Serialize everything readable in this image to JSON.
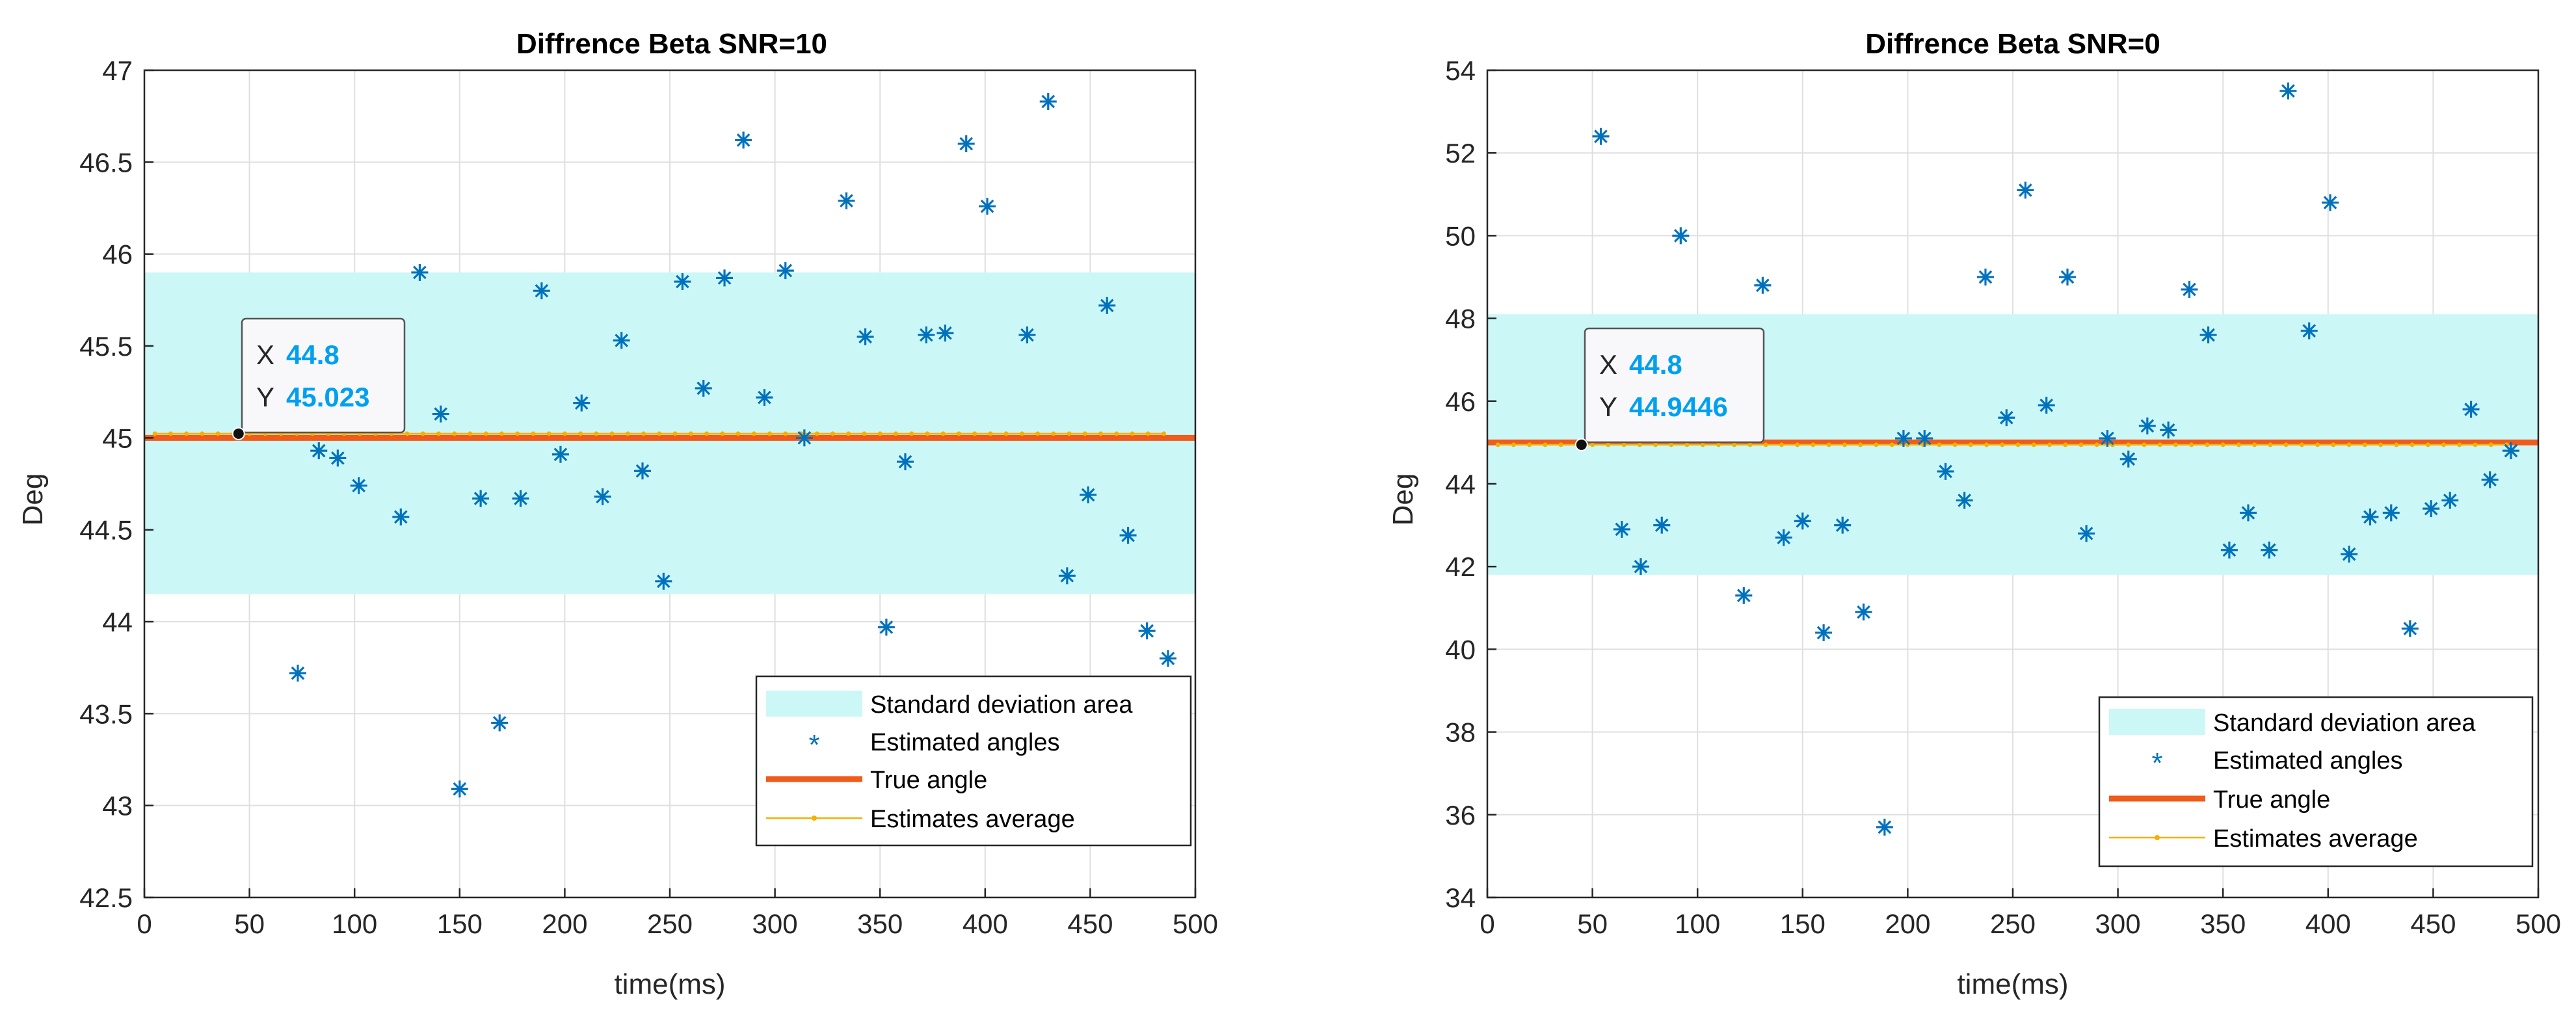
{
  "chart_data": [
    {
      "type": "scatter",
      "title": "Diffrence Beta SNR=10",
      "xlabel": "time(ms)",
      "ylabel": "Deg",
      "xlim": [
        0,
        500
      ],
      "ylim": [
        42.5,
        47
      ],
      "xticks": [
        0,
        50,
        100,
        150,
        200,
        250,
        300,
        350,
        400,
        450,
        500
      ],
      "yticks": [
        42.5,
        43,
        43.5,
        44,
        44.5,
        45,
        45.5,
        46,
        46.5,
        47
      ],
      "xtick_labels": [
        "0",
        "50",
        "100",
        "150",
        "200",
        "250",
        "300",
        "350",
        "400",
        "450",
        "500"
      ],
      "ytick_labels": [
        "42.5",
        "43",
        "43.5",
        "44",
        "44.5",
        "45",
        "45.5",
        "46",
        "46.5",
        "47"
      ],
      "grid": true,
      "legend_position": "bottom-right",
      "colors": {
        "band": "#ccf7f7",
        "estimates": "#0072bd",
        "true_angle": "#f05a1a",
        "average": "#f5b000"
      },
      "series": [
        {
          "name": "Standard deviation area",
          "kind": "band",
          "range": [
            44.15,
            45.9
          ]
        },
        {
          "name": "Estimated angles",
          "kind": "scatter",
          "points": [
            [
              73,
              43.72
            ],
            [
              83,
              44.93
            ],
            [
              92,
              44.89
            ],
            [
              102,
              44.74
            ],
            [
              122,
              44.57
            ],
            [
              131,
              45.9
            ],
            [
              141,
              45.13
            ],
            [
              150,
              43.09
            ],
            [
              160,
              44.67
            ],
            [
              169,
              43.45
            ],
            [
              179,
              44.67
            ],
            [
              189,
              45.8
            ],
            [
              198,
              44.91
            ],
            [
              208,
              45.19
            ],
            [
              218,
              44.68
            ],
            [
              227,
              45.53
            ],
            [
              237,
              44.82
            ],
            [
              247,
              44.22
            ],
            [
              256,
              45.85
            ],
            [
              266,
              45.27
            ],
            [
              276,
              45.87
            ],
            [
              285,
              46.62
            ],
            [
              295,
              45.22
            ],
            [
              305,
              45.91
            ],
            [
              314,
              45.0
            ],
            [
              334,
              46.29
            ],
            [
              343,
              45.55
            ],
            [
              353,
              43.97
            ],
            [
              362,
              44.87
            ],
            [
              372,
              45.56
            ],
            [
              381,
              45.57
            ],
            [
              391,
              46.6
            ],
            [
              401,
              46.26
            ],
            [
              420,
              45.56
            ],
            [
              430,
              46.83
            ],
            [
              439,
              44.25
            ],
            [
              449,
              44.69
            ],
            [
              458,
              45.72
            ],
            [
              468,
              44.47
            ],
            [
              477,
              43.95
            ],
            [
              487,
              43.8
            ]
          ]
        },
        {
          "name": "True angle",
          "kind": "line",
          "y": 45.0
        },
        {
          "name": "Estimates average",
          "kind": "markerline",
          "y": 45.023,
          "x": [
            5,
            485
          ],
          "step": 7.5
        }
      ],
      "datatip": {
        "x": 44.8,
        "y": 45.023,
        "x_text": "44.8",
        "y_text": "45.023"
      }
    },
    {
      "type": "scatter",
      "title": "Diffrence Beta SNR=0",
      "xlabel": "time(ms)",
      "ylabel": "Deg",
      "xlim": [
        0,
        500
      ],
      "ylim": [
        34,
        54
      ],
      "xticks": [
        0,
        50,
        100,
        150,
        200,
        250,
        300,
        350,
        400,
        450,
        500
      ],
      "yticks": [
        34,
        36,
        38,
        40,
        42,
        44,
        46,
        48,
        50,
        52,
        54
      ],
      "xtick_labels": [
        "0",
        "50",
        "100",
        "150",
        "200",
        "250",
        "300",
        "350",
        "400",
        "450",
        "500"
      ],
      "ytick_labels": [
        "34",
        "36",
        "38",
        "40",
        "42",
        "44",
        "46",
        "48",
        "50",
        "52",
        "54"
      ],
      "grid": true,
      "legend_position": "bottom-right",
      "colors": {
        "band": "#ccf7f7",
        "estimates": "#0072bd",
        "true_angle": "#f05a1a",
        "average": "#f5b000"
      },
      "series": [
        {
          "name": "Standard deviation area",
          "kind": "band",
          "range": [
            41.8,
            48.1
          ]
        },
        {
          "name": "Estimated angles",
          "kind": "scatter",
          "points": [
            [
              54,
              52.4
            ],
            [
              64,
              42.9
            ],
            [
              73,
              42.0
            ],
            [
              83,
              43.0
            ],
            [
              92,
              50.0
            ],
            [
              122,
              41.3
            ],
            [
              131,
              48.8
            ],
            [
              141,
              42.7
            ],
            [
              150,
              43.1
            ],
            [
              160,
              40.4
            ],
            [
              169,
              43.0
            ],
            [
              179,
              40.9
            ],
            [
              189,
              35.7
            ],
            [
              198,
              45.1
            ],
            [
              208,
              45.1
            ],
            [
              218,
              44.3
            ],
            [
              227,
              43.6
            ],
            [
              237,
              49.0
            ],
            [
              247,
              45.6
            ],
            [
              256,
              51.1
            ],
            [
              266,
              45.9
            ],
            [
              276,
              49.0
            ],
            [
              285,
              42.8
            ],
            [
              295,
              45.1
            ],
            [
              305,
              44.6
            ],
            [
              314,
              45.4
            ],
            [
              324,
              45.3
            ],
            [
              334,
              48.7
            ],
            [
              343,
              47.6
            ],
            [
              353,
              42.4
            ],
            [
              362,
              43.3
            ],
            [
              372,
              42.4
            ],
            [
              381,
              53.5
            ],
            [
              391,
              47.7
            ],
            [
              401,
              50.8
            ],
            [
              410,
              42.3
            ],
            [
              420,
              43.2
            ],
            [
              430,
              43.3
            ],
            [
              439,
              40.5
            ],
            [
              449,
              43.4
            ],
            [
              458,
              43.6
            ],
            [
              468,
              45.8
            ],
            [
              477,
              44.1
            ],
            [
              487,
              44.8
            ]
          ]
        },
        {
          "name": "True angle",
          "kind": "line",
          "y": 45.0
        },
        {
          "name": "Estimates average",
          "kind": "markerline",
          "y": 44.9446,
          "x": [
            5,
            485
          ],
          "step": 7.5
        }
      ],
      "datatip": {
        "x": 44.8,
        "y": 44.9446,
        "x_text": "44.8",
        "y_text": "44.9446"
      }
    }
  ]
}
